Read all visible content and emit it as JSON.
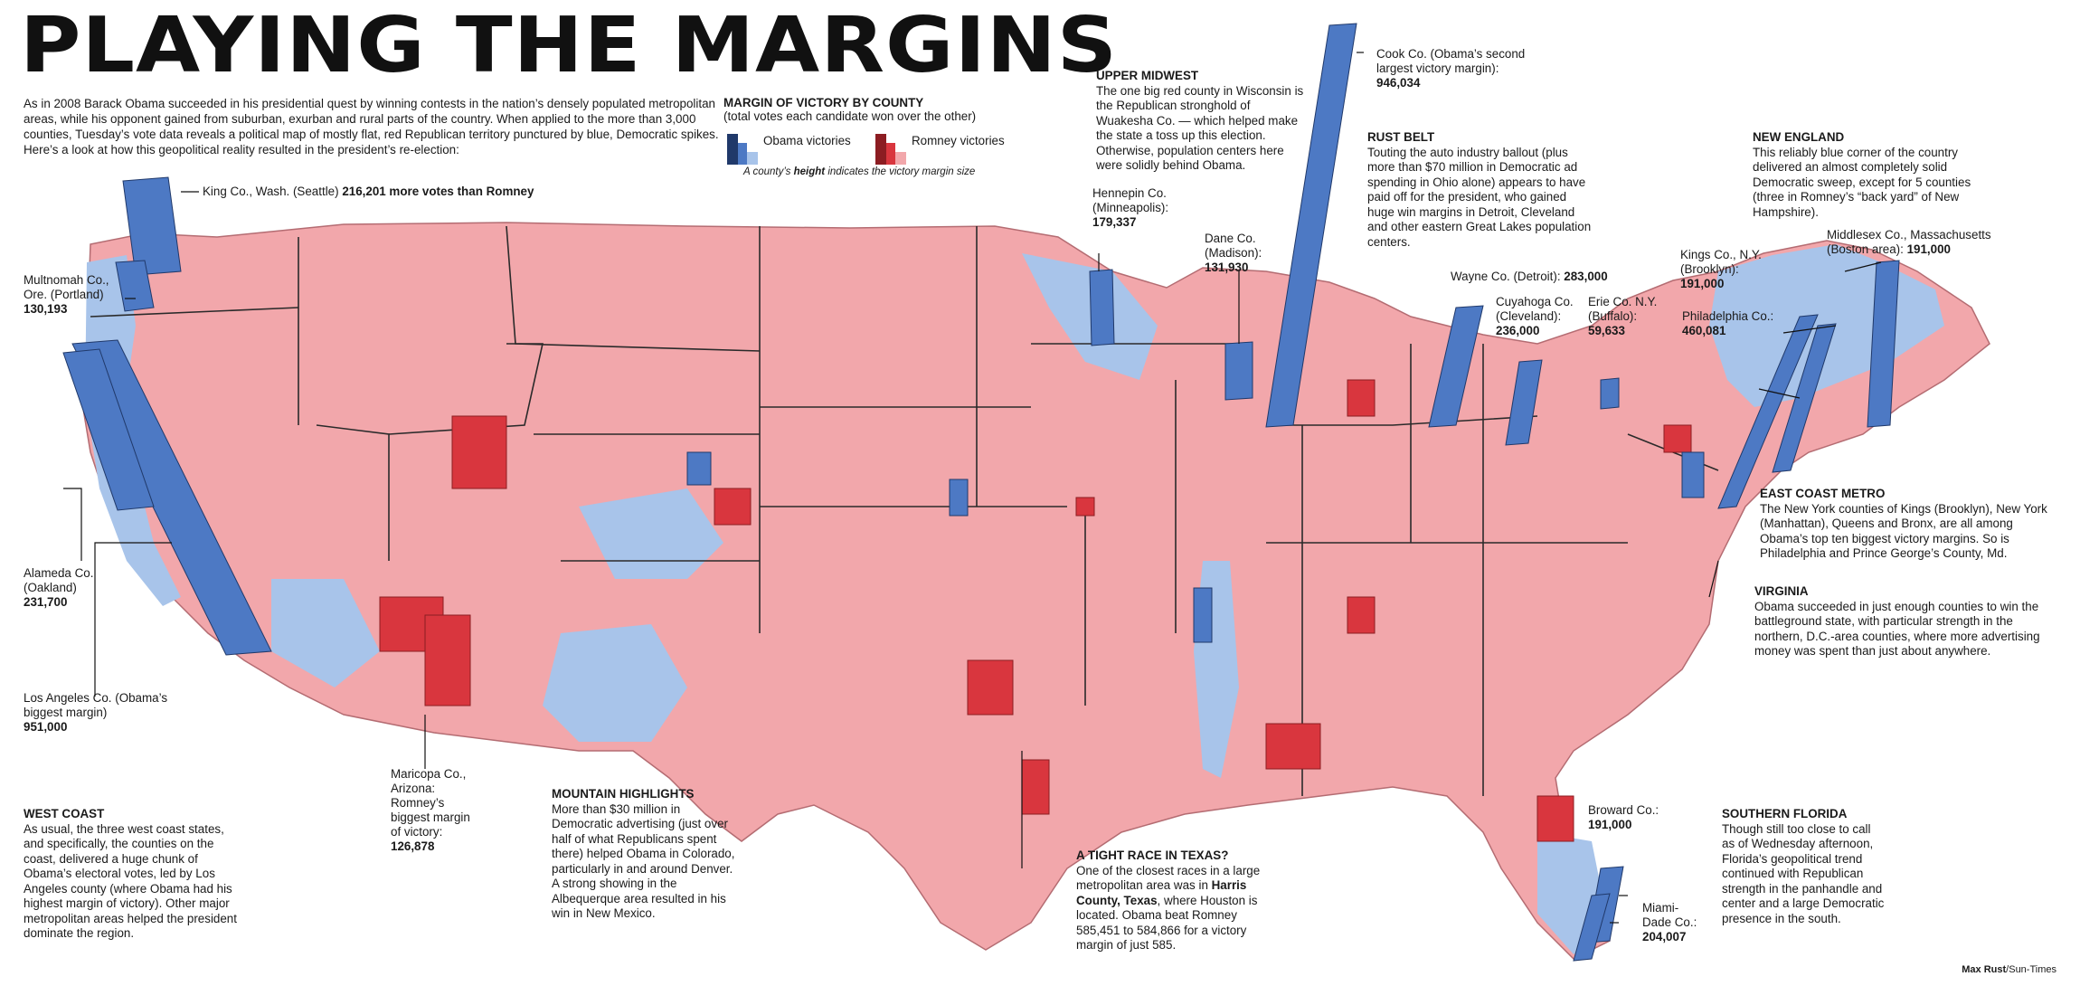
{
  "title": "PLAYING THE MARGINS",
  "intro": "As in 2008 Barack Obama succeeded in his presidential quest by winning contests in the nation’s densely populated metropolitan areas, while his opponent gained from suburban, exurban and rural parts of the country. When applied to the more than 3,000 counties, Tuesday’s vote data reveals a political map of mostly flat, red Republican territory punctured by blue, Democratic spikes. Here’s a look at how this geopolitical reality resulted in the president’s re-election:",
  "legend": {
    "title": "MARGIN OF VICTORY BY COUNTY",
    "subtitle": "(total votes each candidate won over the other)",
    "obama_label": "Obama victories",
    "romney_label": "Romney victories",
    "height_note_pre": "A county’s ",
    "height_note_bold": "height",
    "height_note_post": " indicates the victory margin size"
  },
  "colors": {
    "obama": "#4d79c4",
    "obama_light": "#a8c4ea",
    "romney": "#d9363e",
    "romney_light": "#f2a7ab",
    "no_data": "#dcdcdc"
  },
  "callouts": {
    "king": {
      "pre": "King Co., Wash. (Seattle) ",
      "bold": "216,201 more votes than Romney"
    },
    "multnomah": {
      "name": "Multnomah Co., Ore. (Portland)",
      "value": "130,193"
    },
    "alameda": {
      "name": "Alameda Co. (Oakland)",
      "value": "231,700"
    },
    "la": {
      "name": "Los Angeles Co. (Obama’s biggest margin)",
      "value": "951,000"
    },
    "maricopa": {
      "name": "Maricopa Co., Arizona: Romney’s biggest margin of victory:",
      "value": "126,878"
    },
    "hennepin": {
      "name": "Hennepin Co. (Minneapolis):",
      "value": "179,337"
    },
    "dane": {
      "name": "Dane Co. (Madison):",
      "value": "131,930"
    },
    "cook": {
      "name": "Cook Co. (Obama’s second largest victory margin):",
      "value": "946,034"
    },
    "wayne": {
      "name": "Wayne Co. (Detroit): ",
      "value": "283,000"
    },
    "cuyahoga": {
      "name": "Cuyahoga Co. (Cleveland):",
      "value": "236,000"
    },
    "erie": {
      "name": "Erie Co. N.Y. (Buffalo):",
      "value": "59,633"
    },
    "kings": {
      "name": "Kings Co., N.Y. (Brooklyn):",
      "value": "191,000"
    },
    "middlesex": {
      "name": "Middlesex Co., Massachusetts (Boston area): ",
      "value": "191,000"
    },
    "philadelphia": {
      "name": "Philadelphia Co.: ",
      "value": "460,081"
    },
    "broward": {
      "name": "Broward Co.:",
      "value": "191,000"
    },
    "miami": {
      "name": "Miami-Dade Co.:",
      "value": "204,007"
    }
  },
  "notes": {
    "upper_midwest": {
      "head": "UPPER MIDWEST",
      "body": "The one big red county in Wisconsin is the Republican stronghold of Wuakesha Co. — which helped make the state a toss up this election. Otherwise, population centers here were solidly behind Obama."
    },
    "rust_belt": {
      "head": "RUST BELT",
      "body": "Touting the auto industry ballout (plus more than $70 million in Democratic ad spending in Ohio alone) appears to have paid off for the president, who gained huge win margins in Detroit, Cleveland and other eastern Great Lakes population centers."
    },
    "new_england": {
      "head": "NEW ENGLAND",
      "body": "This reliably blue corner of the country delivered an almost completely solid Democratic sweep, except for 5 counties (three in Romney’s “back yard” of New Hampshire)."
    },
    "east_coast": {
      "head": "EAST COAST METRO",
      "body": "The New York counties of Kings (Brooklyn), New York (Manhattan), Queens and Bronx, are all among Obama’s top ten biggest victory margins. So is Philadelphia and Prince George’s County, Md."
    },
    "virginia": {
      "head": "VIRGINIA",
      "body": "Obama succeeded in just enough counties to win the battleground state, with particular strength in the northern, D.C.-area counties, where more advertising money was spent than just about anywhere."
    },
    "west_coast": {
      "head": "WEST COAST",
      "body": "As usual, the three west coast states, and specifically, the counties on the coast, delivered a huge chunk of Obama’s electoral votes, led by Los Angeles county (where Obama had his highest margin of victory). Other major metropolitan areas helped the president dominate the region."
    },
    "mountain": {
      "head": "MOUNTAIN HIGHLIGHTS",
      "body": "More than $30 million in Democratic advertising (just over half of what Republicans spent there) helped Obama in Colorado, particularly in and around Denver. A strong showing in the Albequerque area resulted in his win in New Mexico."
    },
    "texas": {
      "head": "A TIGHT RACE IN TEXAS?",
      "body_pre": "One of the closest races in a large metropolitan area was in ",
      "body_bold": "Harris County, Texas",
      "body_post": ", where Houston is located. Obama beat Romney 585,451 to 584,866 for a victory margin of just 585."
    },
    "south_florida": {
      "head": "SOUTHERN FLORIDA",
      "body": "Though still too close to call as of Wednesday afternoon, Florida’s geopolitical trend continued with Republican strength in the panhandle and center and a large Democratic presence in the south."
    }
  },
  "credit": {
    "name": "Max Rust",
    "org": "/Sun-Times"
  },
  "spikes": [
    {
      "county": "Los Angeles",
      "party": "obama",
      "margin": 951000
    },
    {
      "county": "Cook",
      "party": "obama",
      "margin": 946034
    },
    {
      "county": "Philadelphia",
      "party": "obama",
      "margin": 460081
    },
    {
      "county": "Wayne",
      "party": "obama",
      "margin": 283000
    },
    {
      "county": "Cuyahoga",
      "party": "obama",
      "margin": 236000
    },
    {
      "county": "Alameda",
      "party": "obama",
      "margin": 231700
    },
    {
      "county": "King",
      "party": "obama",
      "margin": 216201
    },
    {
      "county": "Miami-Dade",
      "party": "obama",
      "margin": 204007
    },
    {
      "county": "Kings",
      "party": "obama",
      "margin": 191000
    },
    {
      "county": "Middlesex",
      "party": "obama",
      "margin": 191000
    },
    {
      "county": "Broward",
      "party": "obama",
      "margin": 191000
    },
    {
      "county": "Hennepin",
      "party": "obama",
      "margin": 179337
    },
    {
      "county": "Dane",
      "party": "obama",
      "margin": 131930
    },
    {
      "county": "Multnomah",
      "party": "obama",
      "margin": 130193
    },
    {
      "county": "Maricopa",
      "party": "romney",
      "margin": 126878
    },
    {
      "county": "Erie",
      "party": "obama",
      "margin": 59633
    },
    {
      "county": "Harris",
      "party": "obama",
      "margin": 585
    }
  ]
}
